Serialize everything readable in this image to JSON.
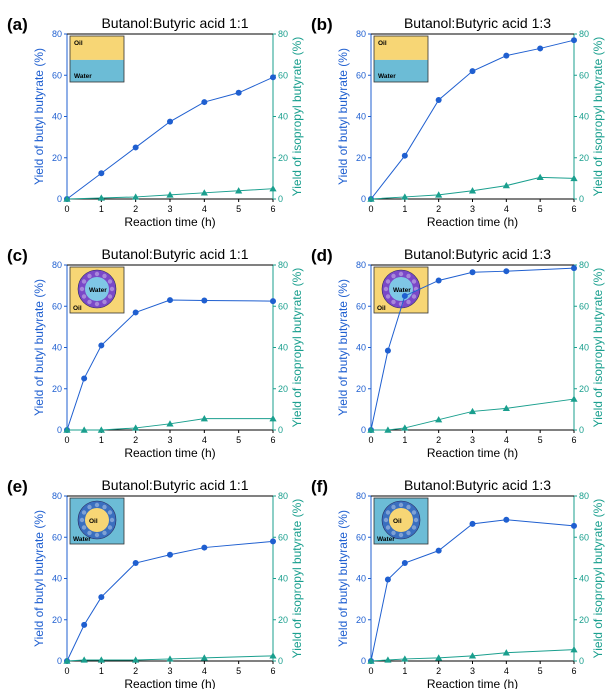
{
  "colors": {
    "butyl": "#1f5fd0",
    "isopropyl": "#1a9f8e",
    "oil": "#f7d675",
    "water": "#6cbcd6"
  },
  "chart_data": [
    {
      "panel_label": "(a)",
      "type": "line",
      "title": "Butanol:Butyric acid 1:1",
      "xlabel": "Reaction time (h)",
      "ylabel": "Yield of butyl butyrate (%)",
      "y2label": "Yield of isopropyl butyrate (%)",
      "xlim": [
        0,
        6
      ],
      "ylim": [
        0,
        80
      ],
      "y2lim": [
        0,
        80
      ],
      "xticks": [
        "0",
        "1",
        "2",
        "3",
        "4",
        "5",
        "6"
      ],
      "yticks": [
        "0",
        "20",
        "40",
        "60",
        "80"
      ],
      "inset": {
        "kind": "layers",
        "labels": [
          "Oil",
          "Water"
        ]
      },
      "series": [
        {
          "x": [
            0,
            1,
            2,
            3,
            4,
            5,
            6
          ],
          "values": [
            0,
            12.5,
            25,
            37.5,
            47,
            51.5,
            59
          ],
          "marker": "circle",
          "axis": "left"
        },
        {
          "x": [
            0,
            1,
            2,
            3,
            4,
            5,
            6
          ],
          "values": [
            0,
            0.5,
            1,
            2,
            3,
            4,
            5
          ],
          "marker": "triangle",
          "axis": "right"
        }
      ]
    },
    {
      "panel_label": "(b)",
      "type": "line",
      "title": "Butanol:Butyric acid 1:3",
      "xlabel": "Reaction time (h)",
      "ylabel": "Yield of butyl butyrate (%)",
      "y2label": "Yield of isopropyl butyrate (%)",
      "xlim": [
        0,
        6
      ],
      "ylim": [
        0,
        80
      ],
      "y2lim": [
        0,
        80
      ],
      "xticks": [
        "0",
        "1",
        "2",
        "3",
        "4",
        "5",
        "6"
      ],
      "yticks": [
        "0",
        "20",
        "40",
        "60",
        "80"
      ],
      "inset": {
        "kind": "layers",
        "labels": [
          "Oil",
          "Water"
        ]
      },
      "series": [
        {
          "x": [
            0,
            1,
            2,
            3,
            4,
            5,
            6
          ],
          "values": [
            0,
            21,
            48,
            62,
            69.5,
            73,
            77
          ],
          "marker": "circle",
          "axis": "left"
        },
        {
          "x": [
            0,
            1,
            2,
            3,
            4,
            5,
            6
          ],
          "values": [
            0,
            1,
            2,
            4,
            6.5,
            10.5,
            10
          ],
          "marker": "triangle",
          "axis": "right"
        }
      ]
    },
    {
      "panel_label": "(c)",
      "type": "line",
      "title": "Butanol:Butyric acid 1:1",
      "xlabel": "Reaction time (h)",
      "ylabel": "Yield of butyl butyrate (%)",
      "y2label": "Yield of isopropyl butyrate (%)",
      "xlim": [
        0,
        6
      ],
      "ylim": [
        0,
        80
      ],
      "y2lim": [
        0,
        80
      ],
      "xticks": [
        "0",
        "1",
        "2",
        "3",
        "4",
        "5",
        "6"
      ],
      "yticks": [
        "0",
        "20",
        "40",
        "60",
        "80"
      ],
      "inset": {
        "kind": "droplet",
        "bg": "oil",
        "core": "water",
        "shell": "purple",
        "labels": [
          "Water",
          "Oil"
        ]
      },
      "series": [
        {
          "x": [
            0,
            0.5,
            1,
            2,
            3,
            4,
            6
          ],
          "values": [
            0,
            25,
            41,
            57,
            63,
            62.8,
            62.5
          ],
          "marker": "circle",
          "axis": "left"
        },
        {
          "x": [
            0,
            0.5,
            1,
            2,
            3,
            4,
            6
          ],
          "values": [
            0,
            0,
            0,
            1,
            3,
            5.5,
            5.5
          ],
          "marker": "triangle",
          "axis": "right"
        }
      ]
    },
    {
      "panel_label": "(d)",
      "type": "line",
      "title": "Butanol:Butyric acid 1:3",
      "xlabel": "Reaction time (h)",
      "ylabel": "Yield of butyl butyrate (%)",
      "y2label": "Yield of isopropyl butyrate (%)",
      "xlim": [
        0,
        6
      ],
      "ylim": [
        0,
        80
      ],
      "y2lim": [
        0,
        80
      ],
      "xticks": [
        "0",
        "1",
        "2",
        "3",
        "4",
        "5",
        "6"
      ],
      "yticks": [
        "0",
        "20",
        "40",
        "60",
        "80"
      ],
      "inset": {
        "kind": "droplet",
        "bg": "oil",
        "core": "water",
        "shell": "purple",
        "labels": [
          "Water",
          "Oil"
        ]
      },
      "series": [
        {
          "x": [
            0,
            0.5,
            1,
            2,
            3,
            4,
            6
          ],
          "values": [
            0,
            38.5,
            65,
            72.5,
            76.5,
            77,
            78.5
          ],
          "marker": "circle",
          "axis": "left"
        },
        {
          "x": [
            0,
            0.5,
            1,
            2,
            3,
            4,
            6
          ],
          "values": [
            0,
            0,
            1,
            5,
            9,
            10.5,
            15
          ],
          "marker": "triangle",
          "axis": "right"
        }
      ]
    },
    {
      "panel_label": "(e)",
      "type": "line",
      "title": "Butanol:Butyric acid 1:1",
      "xlabel": "Reaction time (h)",
      "ylabel": "Yield of butyl butyrate (%)",
      "y2label": "Yield of isopropyl butyrate (%)",
      "xlim": [
        0,
        6
      ],
      "ylim": [
        0,
        80
      ],
      "y2lim": [
        0,
        80
      ],
      "xticks": [
        "0",
        "1",
        "2",
        "3",
        "4",
        "5",
        "6"
      ],
      "yticks": [
        "0",
        "20",
        "40",
        "60",
        "80"
      ],
      "inset": {
        "kind": "droplet",
        "bg": "water",
        "core": "oil",
        "shell": "blue",
        "labels": [
          "Oil",
          "Water"
        ]
      },
      "series": [
        {
          "x": [
            0,
            0.5,
            1,
            2,
            3,
            4,
            6
          ],
          "values": [
            0,
            17.5,
            31,
            47.5,
            51.5,
            55,
            58
          ],
          "marker": "circle",
          "axis": "left"
        },
        {
          "x": [
            0,
            0.5,
            1,
            2,
            3,
            4,
            6
          ],
          "values": [
            0,
            0.5,
            0.5,
            0.5,
            1,
            1.5,
            2.5
          ],
          "marker": "triangle",
          "axis": "right"
        }
      ]
    },
    {
      "panel_label": "(f)",
      "type": "line",
      "title": "Butanol:Butyric acid 1:3",
      "xlabel": "Reaction time (h)",
      "ylabel": "Yield of butyl butyrate (%)",
      "y2label": "Yield of isopropyl butyrate (%)",
      "xlim": [
        0,
        6
      ],
      "ylim": [
        0,
        80
      ],
      "y2lim": [
        0,
        80
      ],
      "xticks": [
        "0",
        "1",
        "2",
        "3",
        "4",
        "5",
        "6"
      ],
      "yticks": [
        "0",
        "20",
        "40",
        "60",
        "80"
      ],
      "inset": {
        "kind": "droplet",
        "bg": "water",
        "core": "oil",
        "shell": "blue",
        "labels": [
          "Oil",
          "Water"
        ]
      },
      "series": [
        {
          "x": [
            0,
            0.5,
            1,
            2,
            3,
            4,
            6
          ],
          "values": [
            0,
            39.5,
            47.5,
            53.5,
            66.5,
            68.5,
            65.5
          ],
          "marker": "circle",
          "axis": "left"
        },
        {
          "x": [
            0,
            0.5,
            1,
            2,
            3,
            4,
            6
          ],
          "values": [
            0,
            0.5,
            1,
            1.5,
            2.5,
            4,
            5.5
          ],
          "marker": "triangle",
          "axis": "right"
        }
      ]
    }
  ]
}
